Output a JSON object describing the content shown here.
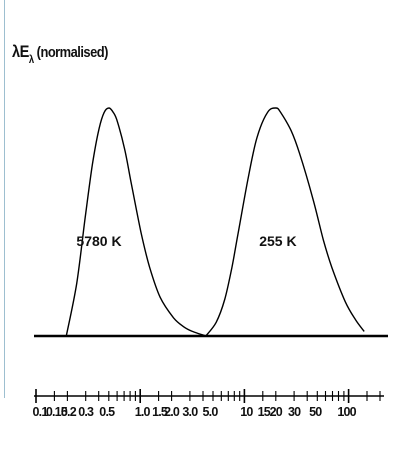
{
  "chart_data": {
    "type": "line",
    "ylabel_prefix": "λE",
    "ylabel_sub": "λ",
    "ylabel_suffix": " (normalised)",
    "x_scale": "log",
    "xlim": [
      0.1,
      200
    ],
    "x_tick_labels": [
      "0.1",
      "0.15",
      "0.2",
      "0.3",
      "0.5",
      "1.0",
      "1.5",
      "2.0",
      "3.0",
      "5.0",
      "10",
      "15",
      "20",
      "30",
      "50",
      "100"
    ],
    "series": [
      {
        "name": "5780 K",
        "x": [
          0.2,
          0.25,
          0.3,
          0.35,
          0.4,
          0.45,
          0.5,
          0.55,
          0.6,
          0.7,
          0.8,
          1.0,
          1.2,
          1.5,
          2.0,
          2.5,
          3.0,
          4.0
        ],
        "y": [
          0.0,
          0.23,
          0.52,
          0.75,
          0.9,
          0.98,
          1.0,
          0.98,
          0.94,
          0.82,
          0.68,
          0.45,
          0.3,
          0.17,
          0.08,
          0.04,
          0.02,
          0.0
        ]
      },
      {
        "name": "255 K",
        "x": [
          4.0,
          5.0,
          6.0,
          7.0,
          8.0,
          10,
          12,
          15,
          18,
          20,
          25,
          30,
          40,
          50,
          60,
          80,
          100,
          120
        ],
        "y": [
          0.0,
          0.06,
          0.16,
          0.3,
          0.45,
          0.7,
          0.87,
          0.98,
          1.0,
          0.98,
          0.9,
          0.8,
          0.6,
          0.42,
          0.3,
          0.15,
          0.07,
          0.02
        ]
      }
    ]
  }
}
